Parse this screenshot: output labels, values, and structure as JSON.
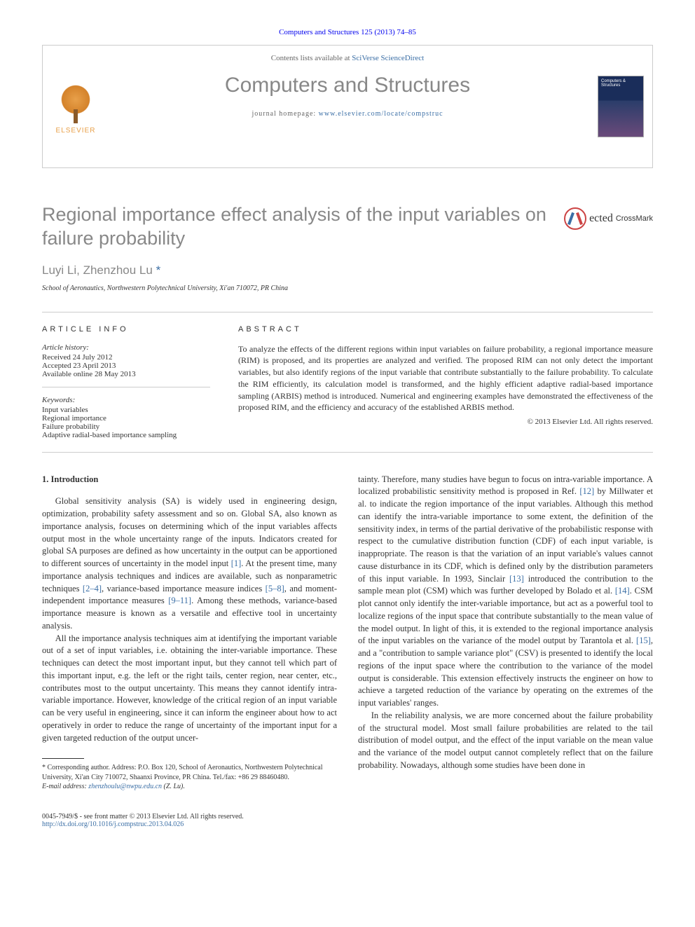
{
  "citation": "Computers and Structures 125 (2013) 74–85",
  "header": {
    "contents_prefix": "Contents lists available at ",
    "contents_link": "SciVerse ScienceDirect",
    "journal": "Computers and Structures",
    "homepage_prefix": "journal homepage: ",
    "homepage_url": "www.elsevier.com/locate/compstruc",
    "publisher": "ELSEVIER",
    "cover_title": "Computers & Structures"
  },
  "crossmark": "CrossMark",
  "article": {
    "title": "Regional importance effect analysis of the input variables on failure probability",
    "authors_text": "Luyi Li, Zhenzhou Lu ",
    "corresponding_marker": "*",
    "affiliation": "School of Aeronautics, Northwestern Polytechnical University, Xi'an 710072, PR China"
  },
  "info": {
    "label": "ARTICLE INFO",
    "history_label": "Article history:",
    "received": "Received 24 July 2012",
    "accepted": "Accepted 23 April 2013",
    "online": "Available online 28 May 2013",
    "keywords_label": "Keywords:",
    "keywords": [
      "Input variables",
      "Regional importance",
      "Failure probability",
      "Adaptive radial-based importance sampling"
    ]
  },
  "abstract": {
    "label": "ABSTRACT",
    "text": "To analyze the effects of the different regions within input variables on failure probability, a regional importance measure (RIM) is proposed, and its properties are analyzed and verified. The proposed RIM can not only detect the important variables, but also identify regions of the input variable that contribute substantially to the failure probability. To calculate the RIM efficiently, its calculation model is transformed, and the highly efficient adaptive radial-based importance sampling (ARBIS) method is introduced. Numerical and engineering examples have demonstrated the effectiveness of the proposed RIM, and the efficiency and accuracy of the established ARBIS method.",
    "copyright": "© 2013 Elsevier Ltd. All rights reserved."
  },
  "body": {
    "heading": "1. Introduction",
    "col1_p1": "Global sensitivity analysis (SA) is widely used in engineering design, optimization, probability safety assessment and so on. Global SA, also known as importance analysis, focuses on determining which of the input variables affects output most in the whole uncertainty range of the inputs. Indicators created for global SA purposes are defined as how uncertainty in the output can be apportioned to different sources of uncertainty in the model input [1]. At the present time, many importance analysis techniques and indices are available, such as nonparametric techniques [2–4], variance-based importance measure indices [5–8], and moment-independent importance measures [9–11]. Among these methods, variance-based importance measure is known as a versatile and effective tool in uncertainty analysis.",
    "col1_p2": "All the importance analysis techniques aim at identifying the important variable out of a set of input variables, i.e. obtaining the inter-variable importance. These techniques can detect the most important input, but they cannot tell which part of this important input, e.g. the left or the right tails, center region, near center, etc., contributes most to the output uncertainty. This means they cannot identify intra-variable importance. However, knowledge of the critical region of an input variable can be very useful in engineering, since it can inform the engineer about how to act operatively in order to reduce the range of uncertainty of the important input for a given targeted reduction of the output uncer-",
    "col2_p1": "tainty. Therefore, many studies have begun to focus on intra-variable importance. A localized probabilistic sensitivity method is proposed in Ref. [12] by Millwater et al. to indicate the region importance of the input variables. Although this method can identify the intra-variable importance to some extent, the definition of the sensitivity index, in terms of the partial derivative of the probabilistic response with respect to the cumulative distribution function (CDF) of each input variable, is inappropriate. The reason is that the variation of an input variable's values cannot cause disturbance in its CDF, which is defined only by the distribution parameters of this input variable. In 1993, Sinclair [13] introduced the contribution to the sample mean plot (CSM) which was further developed by Bolado et al. [14]. CSM plot cannot only identify the inter-variable importance, but act as a powerful tool to localize regions of the input space that contribute substantially to the mean value of the model output. In light of this, it is extended to the regional importance analysis of the input variables on the variance of the model output by Tarantola et al. [15], and a \"contribution to sample variance plot\" (CSV) is presented to identify the local regions of the input space where the contribution to the variance of the model output is considerable. This extension effectively instructs the engineer on how to achieve a targeted reduction of the variance by operating on the extremes of the input variables' ranges.",
    "col2_p2": "In the reliability analysis, we are more concerned about the failure probability of the structural model. Most small failure probabilities are related to the tail distribution of model output, and the effect of the input variable on the mean value and the variance of the model output cannot completely reflect that on the failure probability. Nowadays, although some studies have been done in"
  },
  "footnote": {
    "corresponding": "* Corresponding author. Address: P.O. Box 120, School of Aeronautics, Northwestern Polytechnical University, Xi'an City 710072, Shaanxi Province, PR China. Tel./fax: +86 29 88460480.",
    "email_label": "E-mail address: ",
    "email": "zhenzhoulu@nwpu.edu.cn",
    "email_suffix": " (Z. Lu)."
  },
  "bottom": {
    "issn_line": "0045-7949/$ - see front matter © 2013 Elsevier Ltd. All rights reserved.",
    "doi": "http://dx.doi.org/10.1016/j.compstruc.2013.04.026"
  },
  "refs": {
    "r1": "[1]",
    "r24": "[2–4]",
    "r58": "[5–8]",
    "r911": "[9–11]",
    "r12": "[12]",
    "r13": "[13]",
    "r14": "[14]",
    "r15": "[15]"
  }
}
